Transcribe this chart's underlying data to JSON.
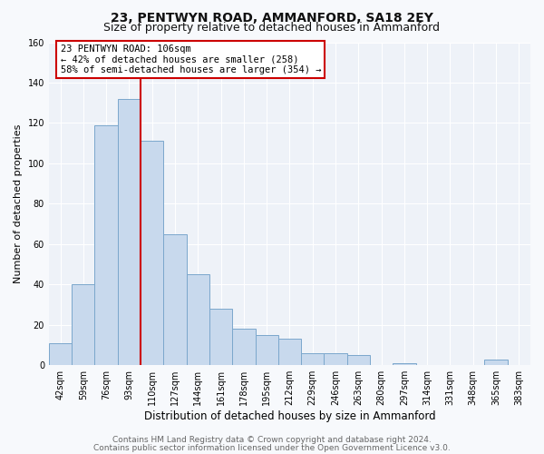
{
  "title": "23, PENTWYN ROAD, AMMANFORD, SA18 2EY",
  "subtitle": "Size of property relative to detached houses in Ammanford",
  "xlabel": "Distribution of detached houses by size in Ammanford",
  "ylabel": "Number of detached properties",
  "categories": [
    "42sqm",
    "59sqm",
    "76sqm",
    "93sqm",
    "110sqm",
    "127sqm",
    "144sqm",
    "161sqm",
    "178sqm",
    "195sqm",
    "212sqm",
    "229sqm",
    "246sqm",
    "263sqm",
    "280sqm",
    "297sqm",
    "314sqm",
    "331sqm",
    "348sqm",
    "365sqm",
    "383sqm"
  ],
  "values": [
    11,
    40,
    119,
    132,
    111,
    65,
    45,
    28,
    18,
    15,
    13,
    6,
    6,
    5,
    0,
    1,
    0,
    0,
    0,
    3,
    0
  ],
  "bar_color": "#c8d9ed",
  "bar_edge_color": "#7ba7cc",
  "vline_x": 3.5,
  "vline_color": "#cc0000",
  "ylim": [
    0,
    160
  ],
  "yticks": [
    0,
    20,
    40,
    60,
    80,
    100,
    120,
    140,
    160
  ],
  "annotation_title": "23 PENTWYN ROAD: 106sqm",
  "annotation_line1": "← 42% of detached houses are smaller (258)",
  "annotation_line2": "58% of semi-detached houses are larger (354) →",
  "annotation_box_facecolor": "#ffffff",
  "annotation_box_edgecolor": "#cc0000",
  "footer_line1": "Contains HM Land Registry data © Crown copyright and database right 2024.",
  "footer_line2": "Contains public sector information licensed under the Open Government Licence v3.0.",
  "fig_facecolor": "#f7f9fc",
  "ax_facecolor": "#eef2f8",
  "grid_color": "#ffffff",
  "title_fontsize": 10,
  "subtitle_fontsize": 9,
  "xlabel_fontsize": 8.5,
  "ylabel_fontsize": 8,
  "tick_fontsize": 7,
  "annotation_fontsize": 7.5,
  "footer_fontsize": 6.5
}
